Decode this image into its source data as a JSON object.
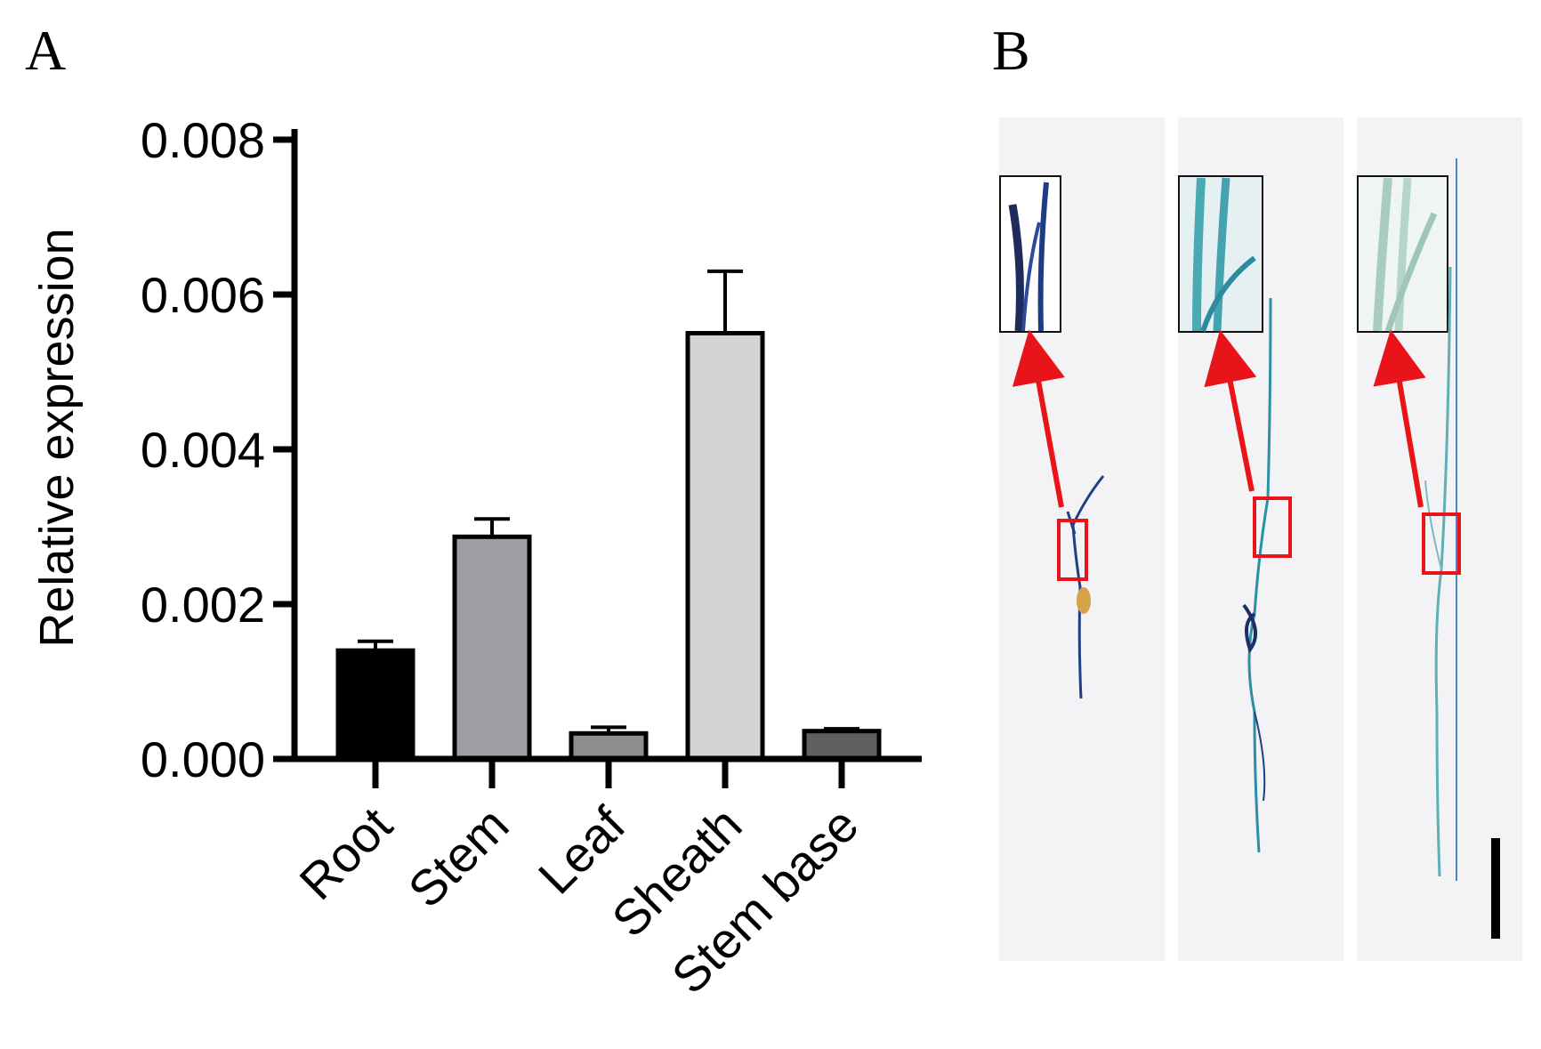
{
  "panels": {
    "a_label": "A",
    "b_label": "B"
  },
  "chart_data": {
    "type": "bar",
    "title": "",
    "xlabel": "",
    "ylabel": "Relative expression",
    "categories": [
      "Root",
      "Stem",
      "Leaf",
      "Sheath",
      "Stem base"
    ],
    "values": [
      0.0014,
      0.00287,
      0.00033,
      0.0055,
      0.00036
    ],
    "errors": [
      0.00012,
      0.00023,
      8e-05,
      0.0008,
      3e-05
    ],
    "colors": [
      "#000000",
      "#9d9da3",
      "#8e8e8e",
      "#d4d4d6",
      "#5f5f5f"
    ],
    "ylim": [
      0,
      0.008
    ],
    "yticks": [
      "0.000",
      "0.002",
      "0.004",
      "0.006",
      "0.008"
    ],
    "grid": false
  },
  "photo_panel": {
    "strips": 3,
    "inset_box_color": "#e8141a",
    "arrow_color": "#e8141a",
    "stain_colors": [
      "#1d3f86",
      "#2d8fa3",
      "#5fb0b5"
    ]
  }
}
